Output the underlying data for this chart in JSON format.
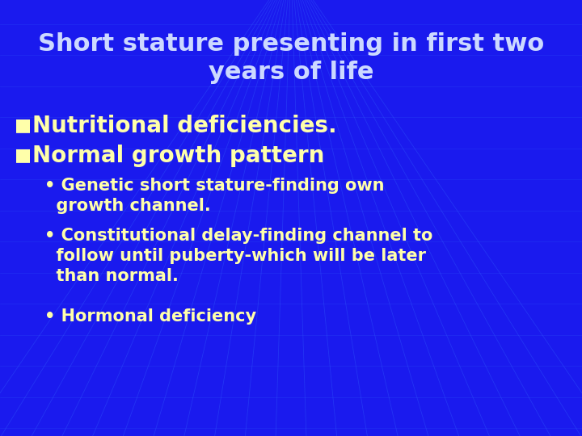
{
  "title_line1": "Short stature presenting in first two",
  "title_line2": "years of life",
  "title_color": "#ccd9ff",
  "bg_color": "#1a1aee",
  "bullet_color": "#ffffaa",
  "sub_color": "#ffffaa",
  "bullet1": "Nutritional deficiencies.",
  "bullet2": "Normal growth pattern",
  "sub1_line1": "Genetic short stature-finding own",
  "sub1_line2": "  growth channel.",
  "sub2_line1": "Constitutional delay-finding channel to",
  "sub2_line2": "  follow until puberty-which will be later",
  "sub2_line3": "  than normal.",
  "sub3_line1": "Hormonal deficiency",
  "title_fontsize": 22,
  "bullet_fontsize": 20,
  "sub_fontsize": 15,
  "grid_color": "#3366ff",
  "grid_alpha": 0.5
}
